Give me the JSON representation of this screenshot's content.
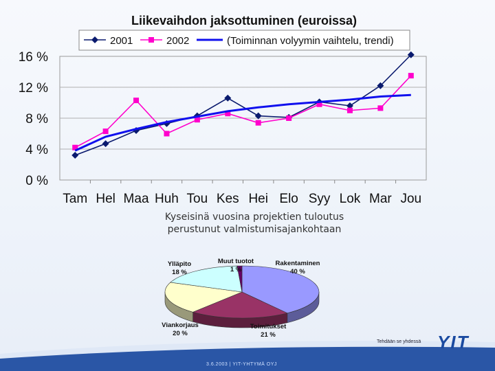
{
  "chart_data": [
    {
      "type": "line",
      "title": "Liikevaihdon jaksottuminen (euroissa)",
      "categories": [
        "Tam",
        "Hel",
        "Maa",
        "Huh",
        "Tou",
        "Kes",
        "Hei",
        "Elo",
        "Syy",
        "Lok",
        "Mar",
        "Jou"
      ],
      "series": [
        {
          "name": "2001",
          "color": "#0a1a6e",
          "marker": "diamond",
          "values": [
            3.2,
            4.7,
            6.4,
            7.3,
            8.3,
            10.6,
            8.3,
            8.1,
            10.1,
            9.6,
            12.2,
            16.2
          ]
        },
        {
          "name": "2002",
          "color": "#ff00cc",
          "marker": "square",
          "values": [
            4.2,
            6.3,
            10.3,
            6.0,
            7.8,
            8.6,
            7.4,
            8.0,
            9.8,
            9.0,
            9.3,
            13.5
          ]
        },
        {
          "name": "(Toiminnan volyymin vaihtelu, trendi)",
          "color": "#1010ee",
          "marker": "none",
          "values": [
            3.8,
            5.6,
            6.6,
            7.5,
            8.2,
            8.9,
            9.4,
            9.8,
            10.1,
            10.4,
            10.8,
            11.0
          ]
        }
      ],
      "yticks": [
        "16 %",
        "12 %",
        "8 %",
        "4 %",
        "0 %"
      ],
      "ylim": [
        0,
        16
      ],
      "grid": true,
      "legend": "top"
    },
    {
      "type": "pie",
      "slices": [
        {
          "label": "Rakentaminen",
          "value": 40,
          "value_label": "40 %",
          "color": "#9999ff"
        },
        {
          "label": "Toimitukset",
          "value": 21,
          "value_label": "21 %",
          "color": "#993366"
        },
        {
          "label": "Viankorjaus",
          "value": 20,
          "value_label": "20 %",
          "color": "#ffffcc"
        },
        {
          "label": "Ylläpito",
          "value": 18,
          "value_label": "18 %",
          "color": "#ccffff"
        },
        {
          "label": "Muut tuotot",
          "value": 1,
          "value_label": "1 %",
          "color": "#660066"
        }
      ]
    }
  ],
  "caption": {
    "line1": "Kyseisinä vuosina projektien tuloutus",
    "line2": "perustunut valmistumisajankohtaan"
  },
  "footer": {
    "text": "3.6.2003   |   YIT-YHTYMÄ OYJ",
    "tagline": "Tehdään se yhdessä",
    "logo": "YIT"
  }
}
